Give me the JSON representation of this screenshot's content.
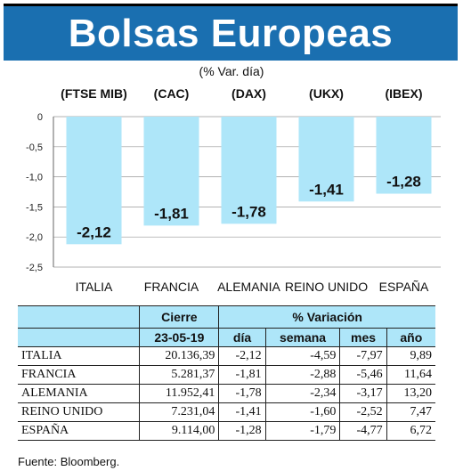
{
  "header": {
    "title": "Bolsas Europeas",
    "subtitle": "(% Var. día)"
  },
  "chart_data": {
    "type": "bar",
    "index_labels": [
      "(FTSE MIB)",
      "(CAC)",
      "(DAX)",
      "(UKX)",
      "(IBEX)"
    ],
    "categories": [
      "ITALIA",
      "FRANCIA",
      "ALEMANIA",
      "REINO UNIDO",
      "ESPAÑA"
    ],
    "values": [
      -2.12,
      -1.81,
      -1.78,
      -1.41,
      -1.28
    ],
    "value_labels": [
      "-2,12",
      "-1,81",
      "-1,78",
      "-1,41",
      "-1,28"
    ],
    "ylim": [
      -2.5,
      0
    ],
    "yticks": [
      0,
      -0.5,
      -1.0,
      -1.5,
      -2.0,
      -2.5
    ],
    "ytick_labels": [
      "0",
      "-0,5",
      "-1,0",
      "-1,5",
      "-2,0",
      "-2,5"
    ],
    "grid": true,
    "bar_color": "#aee6f9"
  },
  "table": {
    "group_headers": {
      "close": "Cierre",
      "variation": "% Variación"
    },
    "sub_headers": {
      "date": "23-05-19",
      "day": "día",
      "week": "semana",
      "month": "mes",
      "year": "año"
    },
    "rows": [
      {
        "name": "ITALIA",
        "close": "20.136,39",
        "day": "-2,12",
        "week": "-4,59",
        "month": "-7,97",
        "year": "9,89"
      },
      {
        "name": "FRANCIA",
        "close": "5.281,37",
        "day": "-1,81",
        "week": "-2,88",
        "month": "-5,46",
        "year": "11,64"
      },
      {
        "name": "ALEMANIA",
        "close": "11.952,41",
        "day": "-1,78",
        "week": "-2,34",
        "month": "-3,17",
        "year": "13,20"
      },
      {
        "name": "REINO UNIDO",
        "close": "7.231,04",
        "day": "-1,41",
        "week": "-1,60",
        "month": "-2,52",
        "year": "7,47"
      },
      {
        "name": "ESPAÑA",
        "close": "9.114,00",
        "day": "-1,28",
        "week": "-1,79",
        "month": "-4,77",
        "year": "6,72"
      }
    ]
  },
  "footer": {
    "source": "Fuente: Bloomberg."
  },
  "colors": {
    "banner": "#1a6fb0",
    "accent": "#aee6f9"
  }
}
